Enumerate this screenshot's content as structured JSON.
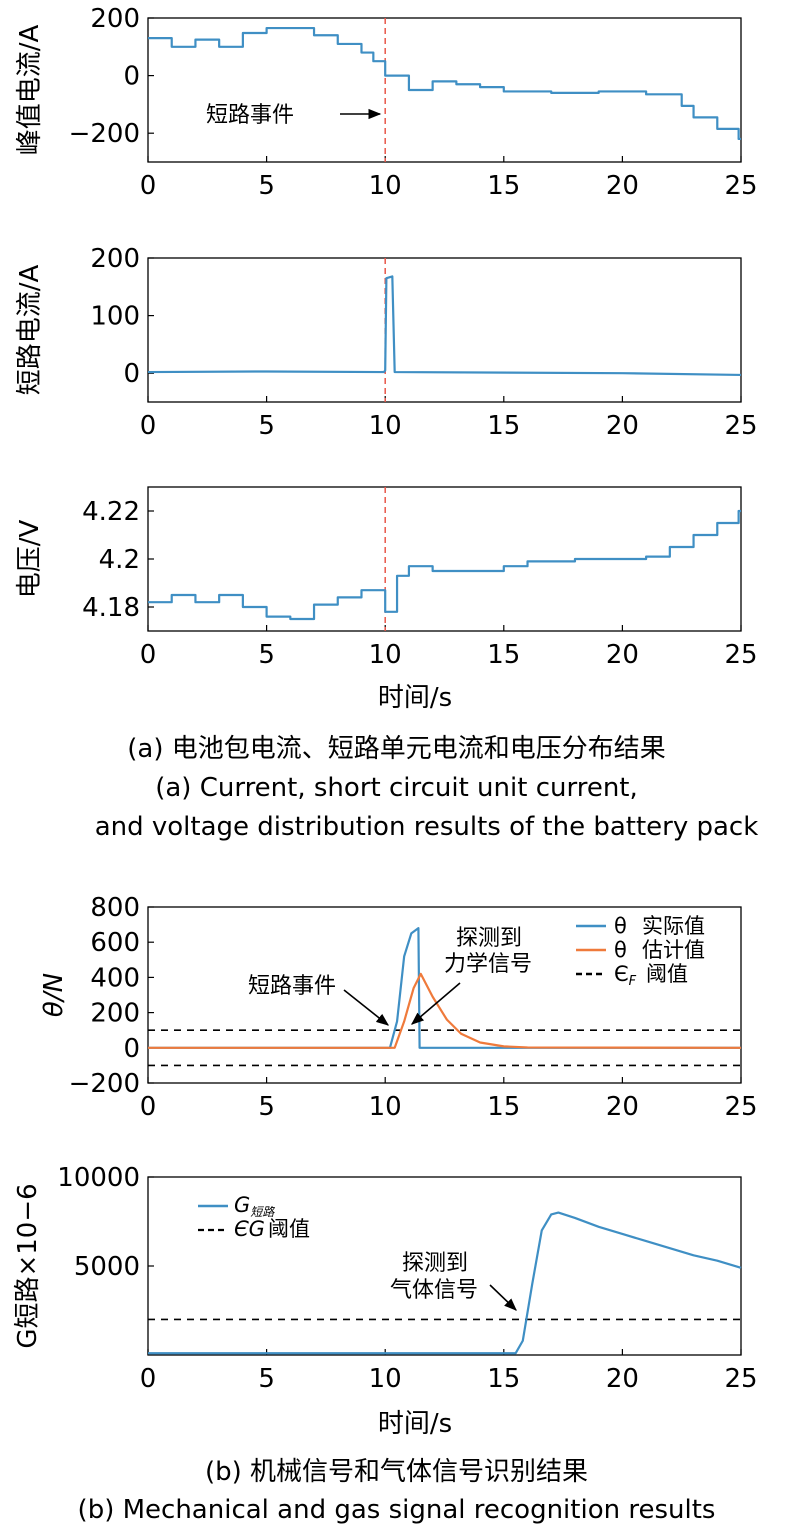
{
  "chart_data": [
    {
      "type": "line",
      "panel": "a1",
      "ylabel": "峰值电流/A",
      "xlim": [
        0,
        25
      ],
      "ylim": [
        -300,
        200
      ],
      "xticks": [
        "0",
        "5",
        "10",
        "15",
        "20",
        "25"
      ],
      "yticks": [
        "200",
        "0",
        "−200"
      ],
      "annotation": "短路事件",
      "event_x": 10,
      "series": [
        {
          "step": true,
          "values": [
            [
              0,
              130
            ],
            [
              1,
              100
            ],
            [
              2,
              125
            ],
            [
              3,
              100
            ],
            [
              4,
              148
            ],
            [
              5,
              165
            ],
            [
              7,
              140
            ],
            [
              8,
              110
            ],
            [
              9,
              80
            ],
            [
              9.5,
              50
            ],
            [
              10,
              0
            ],
            [
              11,
              -50
            ],
            [
              12,
              -20
            ],
            [
              13,
              -30
            ],
            [
              14,
              -40
            ],
            [
              15,
              -55
            ],
            [
              17,
              -60
            ],
            [
              19,
              -55
            ],
            [
              21,
              -65
            ],
            [
              22.5,
              -105
            ],
            [
              23,
              -145
            ],
            [
              24,
              -185
            ],
            [
              24.9,
              -220
            ]
          ]
        }
      ]
    },
    {
      "type": "line",
      "panel": "a2",
      "ylabel": "短路电流/A",
      "xlim": [
        0,
        25
      ],
      "ylim": [
        -50,
        200
      ],
      "xticks": [
        "0",
        "5",
        "10",
        "15",
        "20",
        "25"
      ],
      "yticks": [
        "200",
        "100",
        "0"
      ],
      "event_x": 10,
      "series": [
        {
          "values": [
            [
              0,
              2
            ],
            [
              5,
              3
            ],
            [
              9.95,
              2
            ],
            [
              10,
              5
            ],
            [
              10.05,
              165
            ],
            [
              10.3,
              168
            ],
            [
              10.4,
              2
            ],
            [
              20,
              0
            ],
            [
              25,
              -3
            ]
          ]
        }
      ]
    },
    {
      "type": "line",
      "panel": "a3",
      "ylabel": "电压/V",
      "xlim": [
        0,
        25
      ],
      "ylim": [
        4.17,
        4.23
      ],
      "xticks": [
        "0",
        "5",
        "10",
        "15",
        "20",
        "25"
      ],
      "yticks": [
        "4.22",
        "4.2",
        "4.18"
      ],
      "event_x": 10,
      "series": [
        {
          "step": true,
          "values": [
            [
              0,
              4.182
            ],
            [
              1,
              4.185
            ],
            [
              2,
              4.182
            ],
            [
              3,
              4.185
            ],
            [
              4,
              4.18
            ],
            [
              5,
              4.176
            ],
            [
              6,
              4.175
            ],
            [
              7,
              4.181
            ],
            [
              8,
              4.184
            ],
            [
              9,
              4.187
            ],
            [
              10,
              4.178
            ],
            [
              10.5,
              4.193
            ],
            [
              11,
              4.197
            ],
            [
              12,
              4.195
            ],
            [
              15,
              4.197
            ],
            [
              16,
              4.199
            ],
            [
              18,
              4.2
            ],
            [
              21,
              4.201
            ],
            [
              22,
              4.205
            ],
            [
              23,
              4.21
            ],
            [
              24,
              4.215
            ],
            [
              24.9,
              4.22
            ]
          ]
        }
      ]
    },
    {
      "type": "line",
      "panel": "b1",
      "ylabel": "θ/N",
      "xlim": [
        0,
        25
      ],
      "ylim": [
        -200,
        800
      ],
      "xticks": [
        "0",
        "5",
        "10",
        "15",
        "20",
        "25"
      ],
      "yticks": [
        "800",
        "600",
        "400",
        "200",
        "0",
        "−200"
      ],
      "legend_position": "top-right",
      "legend": [
        {
          "symbol": "θ",
          "label": "实际值",
          "color": "#3f8fc4"
        },
        {
          "symbol": "θ",
          "label": "估计值",
          "color": "#ef7a3b"
        },
        {
          "symbol": "Є",
          "sub": "F",
          "label": "阈值",
          "color": "#000000",
          "dashed": true
        }
      ],
      "annotations": [
        "短路事件",
        "探测到",
        "力学信号"
      ],
      "thresholds": [
        100,
        -100
      ],
      "series": [
        {
          "name": "θ 实际值",
          "color": "#3f8fc4",
          "values": [
            [
              0,
              0
            ],
            [
              10.2,
              0
            ],
            [
              10.5,
              150
            ],
            [
              10.8,
              520
            ],
            [
              11.1,
              650
            ],
            [
              11.4,
              680
            ],
            [
              11.45,
              0
            ],
            [
              25,
              0
            ]
          ]
        },
        {
          "name": "θ 估计值",
          "color": "#ef7a3b",
          "values": [
            [
              0,
              0
            ],
            [
              10.4,
              0
            ],
            [
              10.8,
              150
            ],
            [
              11.2,
              340
            ],
            [
              11.5,
              420
            ],
            [
              12,
              290
            ],
            [
              12.6,
              160
            ],
            [
              13.2,
              80
            ],
            [
              14,
              30
            ],
            [
              15,
              8
            ],
            [
              16,
              2
            ],
            [
              25,
              0
            ]
          ]
        }
      ]
    },
    {
      "type": "line",
      "panel": "b2",
      "ylabel": "G短路×10−6",
      "xlim": [
        0,
        25
      ],
      "ylim": [
        0,
        10000
      ],
      "xticks": [
        "0",
        "5",
        "10",
        "15",
        "20",
        "25"
      ],
      "yticks": [
        "10000",
        "5000"
      ],
      "legend_position": "top-left",
      "legend": [
        {
          "symbol": "G",
          "sub": "短路",
          "label": "",
          "color": "#3f8fc4"
        },
        {
          "symbol": "ЄG",
          "label": "阈值",
          "color": "#000000",
          "dashed": true
        }
      ],
      "annotations": [
        "探测到",
        "气体信号"
      ],
      "threshold": 2000,
      "series": [
        {
          "name": "G短路",
          "color": "#3f8fc4",
          "values": [
            [
              0,
              100
            ],
            [
              15.5,
              100
            ],
            [
              15.8,
              800
            ],
            [
              16.2,
              4000
            ],
            [
              16.6,
              7000
            ],
            [
              17,
              7900
            ],
            [
              17.3,
              8000
            ],
            [
              18,
              7700
            ],
            [
              19,
              7200
            ],
            [
              20,
              6800
            ],
            [
              21,
              6400
            ],
            [
              22,
              6000
            ],
            [
              23,
              5600
            ],
            [
              24,
              5300
            ],
            [
              25,
              4900
            ]
          ]
        }
      ]
    }
  ],
  "common": {
    "xlabel": "时间/s"
  },
  "captions": {
    "a_zh": "(a) 电池包电流、短路单元电流和电压分布结果",
    "a_en_1": "(a) Current, short circuit unit current,",
    "a_en_2": "and voltage distribution results of the battery pack",
    "b_zh": "(b) 机械信号和气体信号识别结果",
    "b_en": "(b) Mechanical and gas signal recognition results"
  }
}
